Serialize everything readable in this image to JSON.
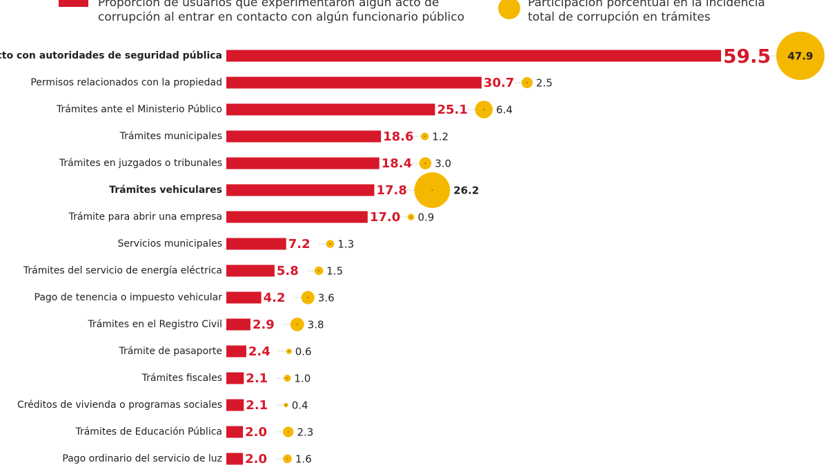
{
  "chart_data": {
    "type": "bar",
    "orientation": "horizontal",
    "categories": [
      "Contacto con autoridades de seguridad pública",
      "Permisos relacionados con la propiedad",
      "Trámites ante el Ministerio Público",
      "Trámites municipales",
      "Trámites en juzgados o tribunales",
      "Trámites vehiculares",
      "Trámite para abrir una empresa",
      "Servicios municipales",
      "Trámites del servicio de energía eléctrica",
      "Pago de tenencia o impuesto vehicular",
      "Trámites en el Registro Civil",
      "Trámite de pasaporte",
      "Trámites fiscales",
      "Créditos de vivienda o programas sociales",
      "Trámites de Educación Pública",
      "Pago ordinario del servicio de luz"
    ],
    "highlight_indices": [
      0,
      5
    ],
    "series": [
      {
        "name": "Proporción de usuarios que experimentaron algún acto de corrupción al entrar en contacto con algún funcionario público",
        "type": "bar",
        "color": "#d7182a",
        "values": [
          59.5,
          30.7,
          25.1,
          18.6,
          18.4,
          17.8,
          17.0,
          7.2,
          5.8,
          4.2,
          2.9,
          2.4,
          2.1,
          2.1,
          2.0,
          2.0
        ],
        "value_labels": [
          "59.5",
          "30.7",
          "25.1",
          "18.6",
          "18.4",
          "17.8",
          "17.0",
          "7.2",
          "5.8",
          "4.2",
          "2.9",
          "2.4",
          "2.1",
          "2.1",
          "2.0",
          "2.0"
        ]
      },
      {
        "name": "Participación porcentual en la incidencia total de corrupción en trámites",
        "type": "bubble",
        "color": "#f5b800",
        "values": [
          47.9,
          2.5,
          6.4,
          1.2,
          3.0,
          26.2,
          0.9,
          1.3,
          1.5,
          3.6,
          3.8,
          0.6,
          1.0,
          0.4,
          2.3,
          1.6
        ],
        "value_labels": [
          "47.9",
          "2.5",
          "6.4",
          "1.2",
          "3.0",
          "26.2",
          "0.9",
          "1.3",
          "1.5",
          "3.6",
          "3.8",
          "0.6",
          "1.0",
          "0.4",
          "2.3",
          "1.6"
        ]
      }
    ]
  }
}
